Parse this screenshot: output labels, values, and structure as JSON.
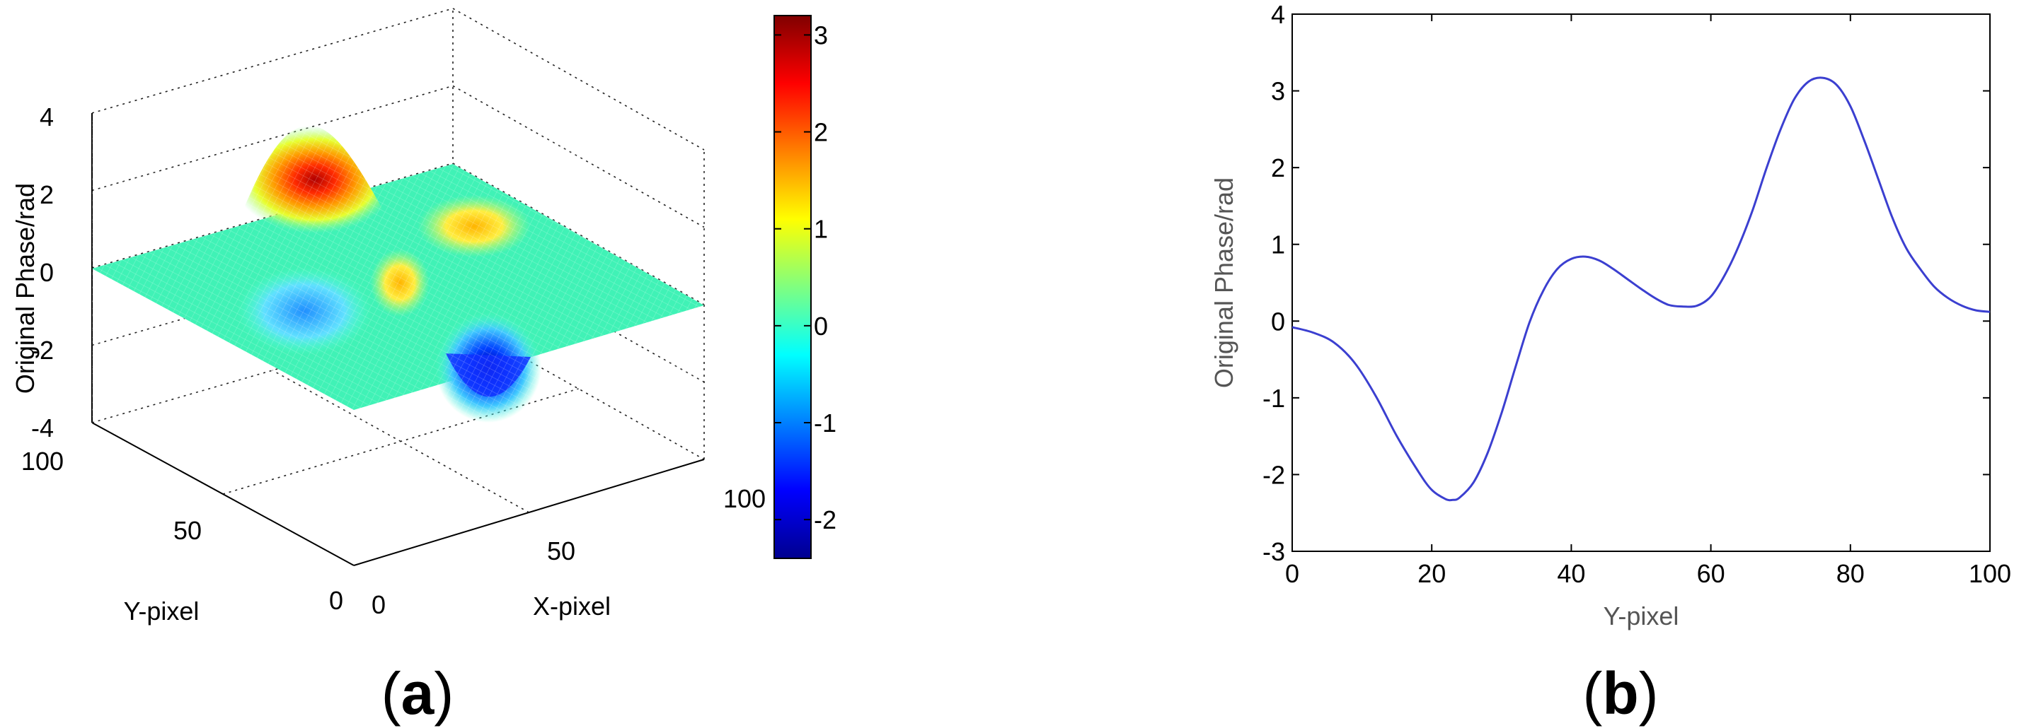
{
  "panels": {
    "a": {
      "caption_open": "(",
      "caption_letter": "a",
      "caption_close": ")"
    },
    "b": {
      "caption_open": "(",
      "caption_letter": "b",
      "caption_close": ")"
    }
  },
  "chart_data": [
    {
      "type": "surface",
      "colormap": "jet",
      "xlabel": "X-pixel",
      "ylabel": "Y-pixel",
      "zlabel": "Original Phase/rad",
      "xlim": [
        0,
        100
      ],
      "ylim": [
        0,
        100
      ],
      "zlim": [
        -4,
        4
      ],
      "x_ticks": [
        "0",
        "50",
        "100"
      ],
      "y_ticks": [
        "0",
        "50",
        "100"
      ],
      "z_ticks": [
        "-4",
        "-2",
        "0",
        "2",
        "4"
      ],
      "colorbar": {
        "range": [
          -2.4,
          3.2
        ],
        "ticks": [
          "-2",
          "-1",
          "0",
          "1",
          "2",
          "3"
        ],
        "values": [
          -2,
          -1,
          0,
          1,
          2,
          3
        ]
      },
      "grid": true,
      "features": [
        {
          "kind": "peak",
          "x": 18,
          "y": 76,
          "z": 3.15
        },
        {
          "kind": "peak",
          "x": 52,
          "y": 62,
          "z": 0.85
        },
        {
          "kind": "peak",
          "x": 58,
          "y": 40,
          "z": 1.2
        },
        {
          "kind": "valley",
          "x": 28,
          "y": 22,
          "z": -2.3
        },
        {
          "kind": "valley",
          "x": 72,
          "y": 20,
          "z": -2.4
        }
      ]
    },
    {
      "type": "line",
      "xlabel": "Y-pixel",
      "ylabel": "Original Phase/rad",
      "xlim": [
        0,
        100
      ],
      "ylim": [
        -3,
        4
      ],
      "x_ticks": [
        "0",
        "20",
        "40",
        "60",
        "80",
        "100"
      ],
      "y_ticks": [
        "-3",
        "-2",
        "-1",
        "0",
        "1",
        "2",
        "3",
        "4"
      ],
      "grid": false,
      "series": [
        {
          "color": "#3b3fd0",
          "x": [
            0,
            3,
            6,
            9,
            12,
            15,
            18,
            20,
            22,
            23,
            24,
            26,
            28,
            30,
            32,
            34,
            36,
            38,
            40,
            42,
            44,
            46,
            48,
            50,
            52,
            54,
            56,
            58,
            60,
            62,
            64,
            66,
            68,
            70,
            72,
            74,
            76,
            78,
            80,
            82,
            84,
            86,
            88,
            90,
            92,
            94,
            96,
            98,
            100
          ],
          "y": [
            -0.08,
            -0.15,
            -0.28,
            -0.55,
            -0.98,
            -1.5,
            -1.95,
            -2.2,
            -2.32,
            -2.33,
            -2.3,
            -2.1,
            -1.72,
            -1.2,
            -0.6,
            -0.02,
            0.4,
            0.68,
            0.81,
            0.84,
            0.79,
            0.68,
            0.55,
            0.42,
            0.3,
            0.21,
            0.19,
            0.2,
            0.32,
            0.6,
            0.98,
            1.45,
            2.0,
            2.5,
            2.9,
            3.12,
            3.17,
            3.08,
            2.8,
            2.35,
            1.85,
            1.35,
            0.95,
            0.68,
            0.45,
            0.3,
            0.2,
            0.14,
            0.12
          ]
        }
      ]
    }
  ]
}
